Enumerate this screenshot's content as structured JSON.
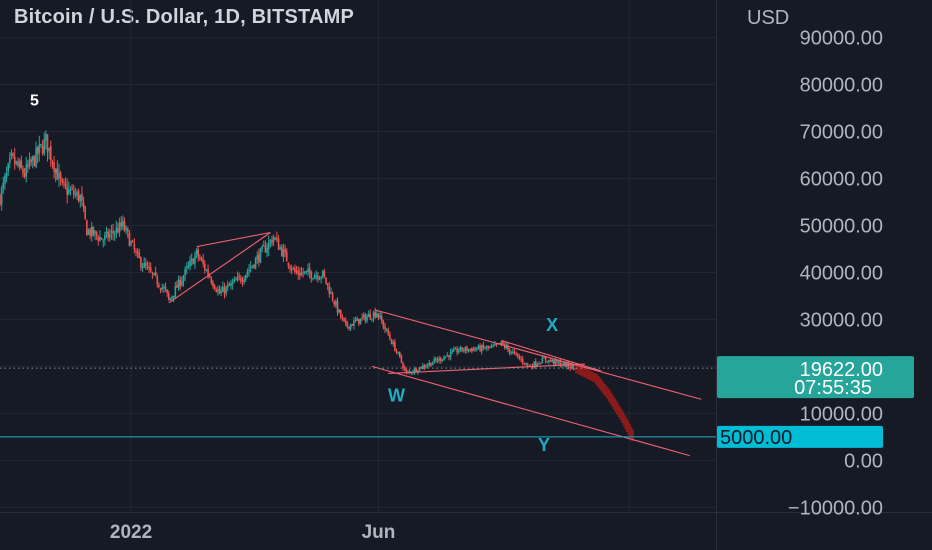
{
  "title": "Bitcoin / U.S. Dollar, 1D, BITSTAMP",
  "colors": {
    "background": "#161a25",
    "grid": "#232734",
    "up": "#26a69a",
    "down": "#ef5350",
    "projection": "#8b1a1a",
    "pattern": "#f06272",
    "support": "#1fb0c9",
    "price_tag": "#26a69a",
    "support_tag": "#00bcd4",
    "wave_label_cyan": "#22a9c4",
    "axis_text": "#b2b5be"
  },
  "price_axis": {
    "currency": "USD",
    "ticks": [
      "90000.00",
      "80000.00",
      "70000.00",
      "60000.00",
      "50000.00",
      "40000.00",
      "30000.00",
      "10000.00",
      "0.00",
      "−10000.00"
    ]
  },
  "price_tag": {
    "price": "19622.00",
    "countdown": "07:55:35"
  },
  "support_tag": {
    "price": "5000.00"
  },
  "time_axis": {
    "labels": [
      "2022",
      "Jun"
    ]
  },
  "wave_labels": [
    "5",
    "X",
    "W",
    "Y"
  ],
  "chart_data": {
    "type": "candlestick",
    "title": "Bitcoin / U.S. Dollar, 1D, BITSTAMP",
    "ylabel": "USD",
    "ylim": [
      -11000,
      98000
    ],
    "xlim": [
      "2021-10-13",
      "2022-12-24"
    ],
    "grid": true,
    "current_price": 19622.0,
    "support_line": 5000.0,
    "series": [
      {
        "name": "BTCUSD",
        "points": [
          {
            "date": "2021-10-13",
            "price": 56000
          },
          {
            "date": "2021-10-20",
            "price": 64000
          },
          {
            "date": "2021-10-28",
            "price": 61000
          },
          {
            "date": "2021-11-10",
            "price": 68000
          },
          {
            "date": "2021-11-20",
            "price": 58000
          },
          {
            "date": "2021-12-01",
            "price": 56000
          },
          {
            "date": "2021-12-05",
            "price": 49000
          },
          {
            "date": "2021-12-15",
            "price": 47000
          },
          {
            "date": "2021-12-27",
            "price": 50000
          },
          {
            "date": "2022-01-05",
            "price": 43000
          },
          {
            "date": "2022-01-22",
            "price": 36000
          },
          {
            "date": "2022-01-24",
            "price": 34000
          },
          {
            "date": "2022-02-10",
            "price": 44000
          },
          {
            "date": "2022-02-24",
            "price": 35500
          },
          {
            "date": "2022-03-10",
            "price": 39000
          },
          {
            "date": "2022-03-29",
            "price": 47500
          },
          {
            "date": "2022-04-11",
            "price": 40000
          },
          {
            "date": "2022-04-28",
            "price": 39500
          },
          {
            "date": "2022-05-09",
            "price": 30500
          },
          {
            "date": "2022-05-12",
            "price": 28500
          },
          {
            "date": "2022-05-31",
            "price": 31500
          },
          {
            "date": "2022-06-13",
            "price": 22500
          },
          {
            "date": "2022-06-18",
            "price": 18500
          },
          {
            "date": "2022-07-08",
            "price": 21500
          },
          {
            "date": "2022-07-20",
            "price": 23500
          },
          {
            "date": "2022-08-10",
            "price": 24000
          },
          {
            "date": "2022-08-15",
            "price": 24800
          },
          {
            "date": "2022-09-01",
            "price": 20000
          },
          {
            "date": "2022-09-10",
            "price": 21500
          },
          {
            "date": "2022-09-30",
            "price": 19622
          }
        ]
      },
      {
        "name": "Projection",
        "points": [
          {
            "date": "2022-09-30",
            "price": 19622
          },
          {
            "date": "2022-10-12",
            "price": 17500
          },
          {
            "date": "2022-10-20",
            "price": 14000
          },
          {
            "date": "2022-10-28",
            "price": 9500
          },
          {
            "date": "2022-11-04",
            "price": 5000
          }
        ]
      }
    ],
    "trendlines": [
      {
        "from": {
          "date": "2022-01-24",
          "price": 33500
        },
        "to": {
          "date": "2022-03-27",
          "price": 48500
        }
      },
      {
        "from": {
          "date": "2022-02-10",
          "price": 45500
        },
        "to": {
          "date": "2022-03-27",
          "price": 48500
        }
      },
      {
        "from": {
          "date": "2022-05-30",
          "price": 32000
        },
        "to": {
          "date": "2022-12-15",
          "price": 13000
        }
      },
      {
        "from": {
          "date": "2022-05-28",
          "price": 20000
        },
        "to": {
          "date": "2022-12-08",
          "price": 1000
        }
      },
      {
        "from": {
          "date": "2022-06-07",
          "price": 18500
        },
        "to": {
          "date": "2022-10-05",
          "price": 20500
        }
      },
      {
        "from": {
          "date": "2022-08-15",
          "price": 25500
        },
        "to": {
          "date": "2022-10-15",
          "price": 19000
        }
      }
    ],
    "annotations": [
      {
        "text": "5",
        "date": "2021-11-03",
        "price": 75500
      },
      {
        "text": "X",
        "date": "2022-09-15",
        "price": 27500
      },
      {
        "text": "W",
        "date": "2022-06-12",
        "price": 12500
      },
      {
        "text": "Y",
        "date": "2022-09-10",
        "price": 2000
      }
    ]
  }
}
